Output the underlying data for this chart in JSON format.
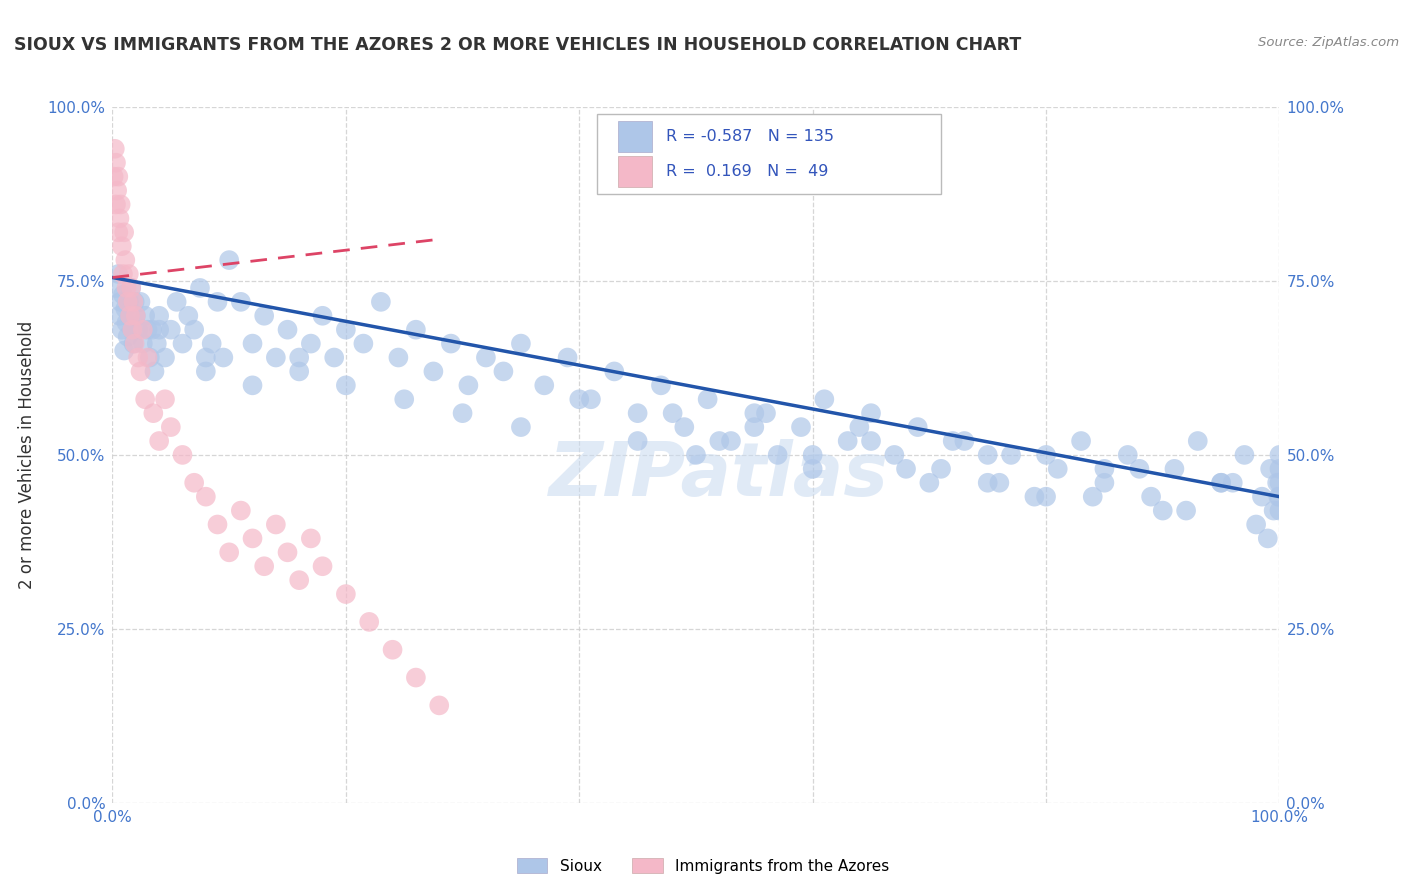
{
  "title": "SIOUX VS IMMIGRANTS FROM THE AZORES 2 OR MORE VEHICLES IN HOUSEHOLD CORRELATION CHART",
  "source": "Source: ZipAtlas.com",
  "ylabel": "2 or more Vehicles in Household",
  "xlim": [
    0.0,
    1.0
  ],
  "ylim": [
    0.0,
    1.0
  ],
  "ytick_labels": [
    "0.0%",
    "25.0%",
    "50.0%",
    "75.0%",
    "100.0%"
  ],
  "ytick_values": [
    0.0,
    0.25,
    0.5,
    0.75,
    1.0
  ],
  "xtick_positions": [
    0.0,
    0.2,
    0.4,
    0.6,
    0.8,
    1.0
  ],
  "xtick_labels": [
    "0.0%",
    "",
    "",
    "",
    "",
    "100.0%"
  ],
  "watermark": "ZIPatlas",
  "sioux_color": "#aec6e8",
  "azores_color": "#f4b8c8",
  "line_sioux_color": "#2255aa",
  "line_azores_color": "#dd4466",
  "background_color": "#ffffff",
  "grid_color": "#cccccc",
  "sioux_scatter_x": [
    0.003,
    0.005,
    0.006,
    0.007,
    0.008,
    0.009,
    0.01,
    0.011,
    0.012,
    0.013,
    0.014,
    0.015,
    0.016,
    0.017,
    0.018,
    0.019,
    0.02,
    0.022,
    0.024,
    0.026,
    0.028,
    0.03,
    0.032,
    0.034,
    0.036,
    0.038,
    0.04,
    0.045,
    0.05,
    0.055,
    0.06,
    0.065,
    0.07,
    0.075,
    0.08,
    0.085,
    0.09,
    0.095,
    0.1,
    0.11,
    0.12,
    0.13,
    0.14,
    0.15,
    0.16,
    0.17,
    0.18,
    0.19,
    0.2,
    0.215,
    0.23,
    0.245,
    0.26,
    0.275,
    0.29,
    0.305,
    0.32,
    0.335,
    0.35,
    0.37,
    0.39,
    0.41,
    0.43,
    0.45,
    0.47,
    0.49,
    0.51,
    0.53,
    0.55,
    0.57,
    0.59,
    0.61,
    0.63,
    0.65,
    0.67,
    0.69,
    0.71,
    0.73,
    0.75,
    0.77,
    0.79,
    0.81,
    0.83,
    0.85,
    0.87,
    0.89,
    0.91,
    0.93,
    0.95,
    0.97,
    0.985,
    0.992,
    0.995,
    0.998,
    0.999,
    1.0,
    1.0,
    1.0,
    1.0,
    1.0,
    0.25,
    0.3,
    0.35,
    0.4,
    0.45,
    0.5,
    0.55,
    0.6,
    0.65,
    0.7,
    0.75,
    0.8,
    0.85,
    0.9,
    0.95,
    0.04,
    0.08,
    0.12,
    0.16,
    0.2,
    0.48,
    0.52,
    0.56,
    0.6,
    0.64,
    0.68,
    0.72,
    0.76,
    0.8,
    0.84,
    0.88,
    0.92,
    0.96,
    0.98,
    0.99
  ],
  "sioux_scatter_y": [
    0.74,
    0.76,
    0.7,
    0.72,
    0.68,
    0.73,
    0.65,
    0.71,
    0.69,
    0.67,
    0.72,
    0.7,
    0.74,
    0.68,
    0.66,
    0.72,
    0.7,
    0.68,
    0.72,
    0.66,
    0.7,
    0.68,
    0.64,
    0.68,
    0.62,
    0.66,
    0.7,
    0.64,
    0.68,
    0.72,
    0.66,
    0.7,
    0.68,
    0.74,
    0.62,
    0.66,
    0.72,
    0.64,
    0.78,
    0.72,
    0.66,
    0.7,
    0.64,
    0.68,
    0.62,
    0.66,
    0.7,
    0.64,
    0.68,
    0.66,
    0.72,
    0.64,
    0.68,
    0.62,
    0.66,
    0.6,
    0.64,
    0.62,
    0.66,
    0.6,
    0.64,
    0.58,
    0.62,
    0.56,
    0.6,
    0.54,
    0.58,
    0.52,
    0.56,
    0.5,
    0.54,
    0.58,
    0.52,
    0.56,
    0.5,
    0.54,
    0.48,
    0.52,
    0.46,
    0.5,
    0.44,
    0.48,
    0.52,
    0.46,
    0.5,
    0.44,
    0.48,
    0.52,
    0.46,
    0.5,
    0.44,
    0.48,
    0.42,
    0.46,
    0.44,
    0.5,
    0.48,
    0.44,
    0.42,
    0.46,
    0.58,
    0.56,
    0.54,
    0.58,
    0.52,
    0.5,
    0.54,
    0.48,
    0.52,
    0.46,
    0.5,
    0.44,
    0.48,
    0.42,
    0.46,
    0.68,
    0.64,
    0.6,
    0.64,
    0.6,
    0.56,
    0.52,
    0.56,
    0.5,
    0.54,
    0.48,
    0.52,
    0.46,
    0.5,
    0.44,
    0.48,
    0.42,
    0.46,
    0.4,
    0.38
  ],
  "azores_scatter_x": [
    0.001,
    0.002,
    0.003,
    0.003,
    0.004,
    0.005,
    0.005,
    0.006,
    0.007,
    0.008,
    0.009,
    0.01,
    0.011,
    0.012,
    0.013,
    0.014,
    0.015,
    0.016,
    0.017,
    0.018,
    0.019,
    0.02,
    0.022,
    0.024,
    0.026,
    0.028,
    0.03,
    0.035,
    0.04,
    0.045,
    0.05,
    0.06,
    0.07,
    0.08,
    0.09,
    0.1,
    0.11,
    0.12,
    0.13,
    0.14,
    0.15,
    0.16,
    0.17,
    0.18,
    0.2,
    0.22,
    0.24,
    0.26,
    0.28
  ],
  "azores_scatter_y": [
    0.9,
    0.94,
    0.86,
    0.92,
    0.88,
    0.82,
    0.9,
    0.84,
    0.86,
    0.8,
    0.76,
    0.82,
    0.78,
    0.74,
    0.72,
    0.76,
    0.7,
    0.74,
    0.68,
    0.72,
    0.66,
    0.7,
    0.64,
    0.62,
    0.68,
    0.58,
    0.64,
    0.56,
    0.52,
    0.58,
    0.54,
    0.5,
    0.46,
    0.44,
    0.4,
    0.36,
    0.42,
    0.38,
    0.34,
    0.4,
    0.36,
    0.32,
    0.38,
    0.34,
    0.3,
    0.26,
    0.22,
    0.18,
    0.14
  ],
  "sioux_trendline_x": [
    0.0,
    1.0
  ],
  "sioux_trendline_y": [
    0.755,
    0.44
  ],
  "azores_trendline_x": [
    0.0,
    0.28
  ],
  "azores_trendline_y": [
    0.755,
    0.81
  ]
}
